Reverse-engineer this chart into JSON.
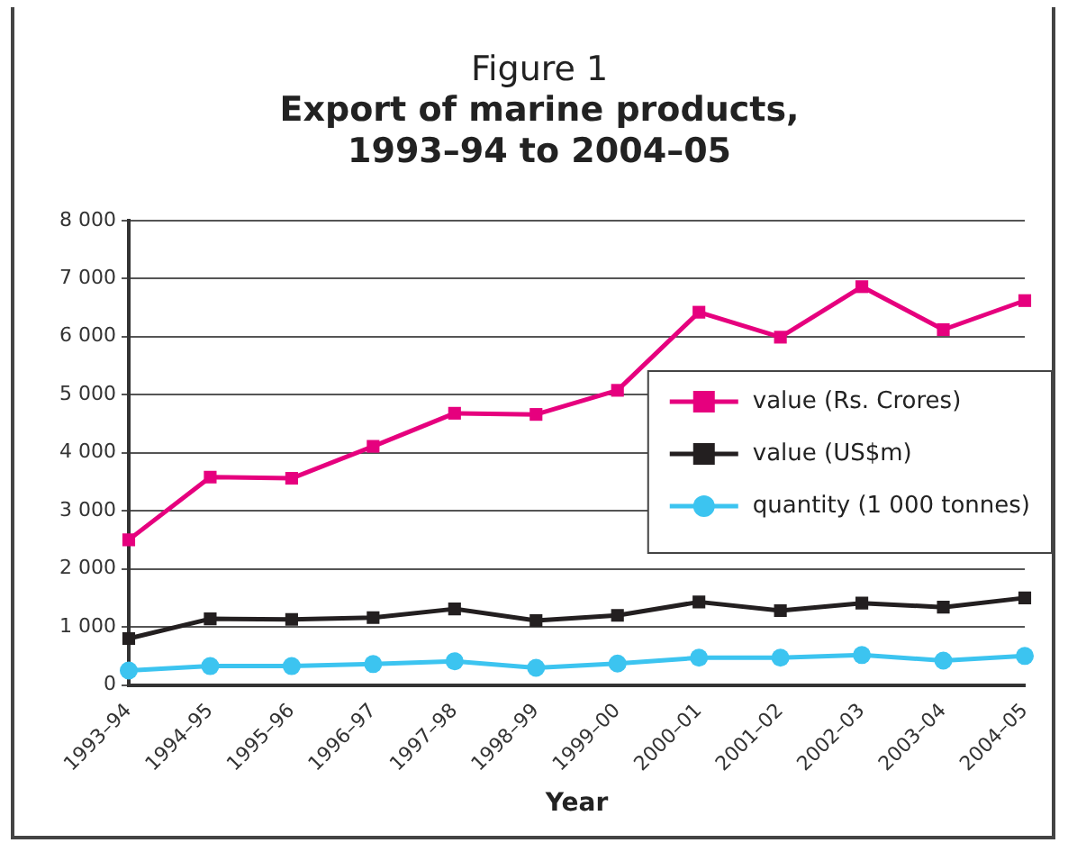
{
  "chart_data": {
    "type": "line",
    "title": "Figure 1",
    "subtitle": "Export of marine products,\n1993–94 to 2004–05",
    "xlabel": "Year",
    "categories": [
      "1993–94",
      "1994–95",
      "1995–96",
      "1996–97",
      "1997–98",
      "1998–99",
      "1999–00",
      "2000–01",
      "2001–02",
      "2002–03",
      "2003–04",
      "2004–05"
    ],
    "series": [
      {
        "name": "value (Rs. Crores)",
        "color": "#e6007e",
        "marker": "square",
        "values": [
          2500,
          3580,
          3560,
          4110,
          4680,
          4660,
          5075,
          6420,
          5990,
          6860,
          6120,
          6620
        ]
      },
      {
        "name": "value (US$m)",
        "color": "#231f20",
        "marker": "square",
        "values": [
          800,
          1140,
          1130,
          1160,
          1310,
          1110,
          1200,
          1430,
          1280,
          1410,
          1340,
          1500
        ]
      },
      {
        "name": "quantity (1 000 tonnes)",
        "color": "#3cc4f0",
        "marker": "circle",
        "values": [
          250,
          325,
          325,
          360,
          410,
          295,
          370,
          470,
          470,
          515,
          420,
          500
        ]
      }
    ],
    "ylim": [
      0,
      8000
    ],
    "yticks": [
      {
        "value": 0,
        "label": "0"
      },
      {
        "value": 1000,
        "label": "1 000"
      },
      {
        "value": 2000,
        "label": "2 000"
      },
      {
        "value": 3000,
        "label": "3 000"
      },
      {
        "value": 4000,
        "label": "4 000"
      },
      {
        "value": 5000,
        "label": "5 000"
      },
      {
        "value": 6000,
        "label": "6 000"
      },
      {
        "value": 7000,
        "label": "7 000"
      },
      {
        "value": 8000,
        "label": "8 000"
      }
    ],
    "grid": "y",
    "legend": "center right",
    "line_style": "solid"
  }
}
